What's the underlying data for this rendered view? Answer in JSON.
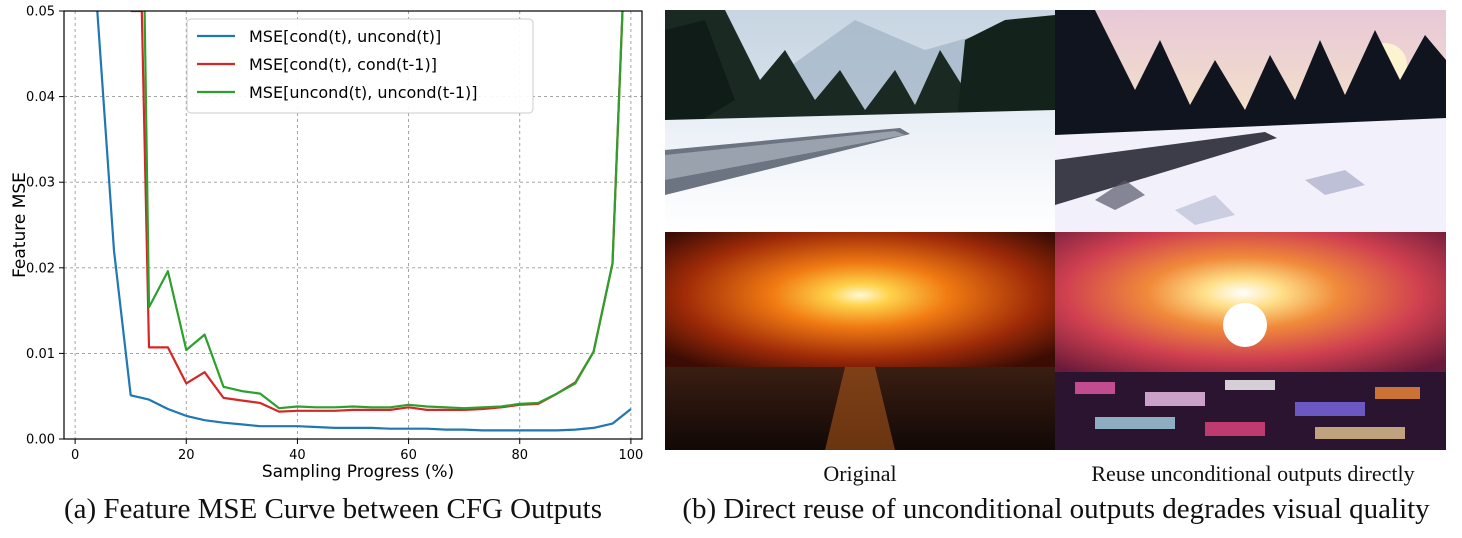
{
  "chart_data": {
    "type": "line",
    "xlabel": "Sampling Progress (%)",
    "ylabel": "Feature MSE",
    "xlim": [
      -2,
      102
    ],
    "ylim": [
      0,
      0.05
    ],
    "xticks": [
      0,
      20,
      40,
      60,
      80,
      100
    ],
    "yticks": [
      0.0,
      0.01,
      0.02,
      0.03,
      0.04,
      0.05
    ],
    "ytick_labels": [
      "0.00",
      "0.01",
      "0.02",
      "0.03",
      "0.04",
      "0.05"
    ],
    "grid": true,
    "legend_position": "top-center",
    "series": [
      {
        "name": "MSE[cond(t), uncond(t)]",
        "color": "#1f77b4",
        "x": [
          4,
          7,
          10,
          13.3,
          16.7,
          20,
          23.3,
          26.7,
          30,
          33.3,
          36.7,
          40,
          43.3,
          46.7,
          50,
          53.3,
          56.7,
          60,
          63.3,
          66.7,
          70,
          73.3,
          76.7,
          80,
          83.3,
          86.7,
          90,
          93.3,
          96.7,
          100
        ],
        "y": [
          0.05,
          0.022,
          0.0051,
          0.0046,
          0.0035,
          0.0027,
          0.0022,
          0.0019,
          0.0017,
          0.0015,
          0.0015,
          0.0015,
          0.0014,
          0.0013,
          0.0013,
          0.0013,
          0.0012,
          0.0012,
          0.0012,
          0.0011,
          0.0011,
          0.001,
          0.001,
          0.001,
          0.001,
          0.001,
          0.0011,
          0.0013,
          0.0018,
          0.0035
        ]
      },
      {
        "name": "MSE[cond(t), cond(t-1)]",
        "color": "#d62728",
        "x": [
          10,
          12,
          13.3,
          16.7,
          20,
          23.3,
          26.7,
          30,
          33.3,
          36.7,
          40,
          43.3,
          46.7,
          50,
          53.3,
          56.7,
          60,
          63.3,
          66.7,
          70,
          73.3,
          76.7,
          80,
          83.3,
          86.7,
          90,
          93.3,
          96.7,
          98.5
        ],
        "y": [
          0.05,
          0.05,
          0.0107,
          0.0107,
          0.0065,
          0.0078,
          0.0048,
          0.0045,
          0.0042,
          0.0032,
          0.0033,
          0.0033,
          0.0033,
          0.0034,
          0.0034,
          0.0034,
          0.0037,
          0.0034,
          0.0034,
          0.0034,
          0.0035,
          0.0037,
          0.004,
          0.0041,
          0.0053,
          0.0066,
          0.0102,
          0.0205,
          0.05
        ]
      },
      {
        "name": "MSE[uncond(t), uncond(t-1)]",
        "color": "#2ca02c",
        "x": [
          12.5,
          13.3,
          16.7,
          20,
          23.3,
          26.7,
          30,
          33.3,
          36.7,
          40,
          43.3,
          46.7,
          50,
          53.3,
          56.7,
          60,
          63.3,
          66.7,
          70,
          73.3,
          76.7,
          80,
          83.3,
          86.7,
          90,
          93.3,
          96.7,
          98.5
        ],
        "y": [
          0.05,
          0.0154,
          0.0196,
          0.0104,
          0.0122,
          0.0061,
          0.0056,
          0.0053,
          0.0036,
          0.0038,
          0.0037,
          0.0037,
          0.0038,
          0.0037,
          0.0037,
          0.004,
          0.0038,
          0.0037,
          0.0036,
          0.0037,
          0.0038,
          0.0041,
          0.0042,
          0.0053,
          0.0065,
          0.0102,
          0.0205,
          0.05
        ]
      }
    ]
  },
  "captions": {
    "left": "(a) Feature MSE Curve between CFG Outputs",
    "right": "(b) Direct reuse of unconditional outputs degrades visual quality"
  },
  "image_labels": {
    "original": "Original",
    "reuse": "Reuse unconditional outputs directly"
  }
}
